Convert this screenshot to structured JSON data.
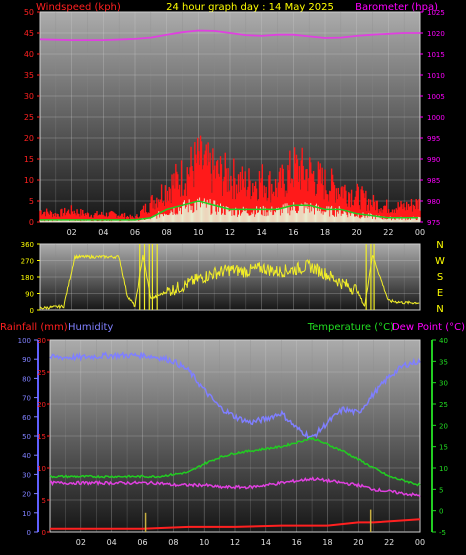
{
  "header": {
    "left_label": "Windspeed (kph)",
    "center_label": "24 hour graph day : 14 May 2025",
    "right_label": "Barometer (hpa)"
  },
  "compass": [
    "N",
    "W",
    "S",
    "E",
    "N"
  ],
  "bottom_header": {
    "rain_label": "Rainfall (mm)",
    "humidity_label": "Humidity",
    "temp_label": "Temperature (°C)",
    "dew_label": "Dew Point (°C)"
  },
  "colors": {
    "wind": "#ff1a1a",
    "gust_fill": "#e8ffe0",
    "avg_wind": "#22cc22",
    "barometer": "#e040e0",
    "direction": "#f2ee28",
    "humidity": "#7f7fff",
    "temperature": "#22cc22",
    "dewpoint": "#e040e0",
    "rain": "#ff2020",
    "rain_rate": "#c8b040"
  },
  "chart_data": [
    {
      "type": "line",
      "title": "24 hour graph day : 14 May 2025",
      "x_ticks": [
        "02",
        "04",
        "06",
        "08",
        "10",
        "12",
        "14",
        "16",
        "18",
        "20",
        "22",
        "00"
      ],
      "xlim_hours": [
        0,
        24
      ],
      "y_left": {
        "label": "Windspeed (kph)",
        "ylim": [
          0,
          50
        ],
        "ticks": [
          0,
          5,
          10,
          15,
          20,
          25,
          30,
          35,
          40,
          45,
          50
        ]
      },
      "y_right": {
        "label": "Barometer (hpa)",
        "ylim": [
          975,
          1025
        ],
        "ticks": [
          975,
          980,
          985,
          990,
          995,
          1000,
          1005,
          1010,
          1015,
          1020,
          1025
        ]
      },
      "series": [
        {
          "axis": "right",
          "kind": "barometer",
          "x": [
            0,
            2,
            4,
            6,
            7,
            8,
            9,
            10,
            11,
            12,
            13,
            14,
            15,
            16,
            17,
            18,
            19,
            20,
            21,
            22,
            23,
            24
          ],
          "values": [
            1018.5,
            1018.3,
            1018.3,
            1018.6,
            1018.9,
            1019.6,
            1020.2,
            1020.6,
            1020.5,
            1020.0,
            1019.5,
            1019.3,
            1019.6,
            1019.6,
            1019.2,
            1018.8,
            1018.9,
            1019.3,
            1019.6,
            1019.8,
            1020.0,
            1020.0
          ]
        },
        {
          "axis": "left",
          "kind": "wind_gust",
          "x": [
            0,
            1,
            2,
            3,
            4,
            5,
            6,
            7,
            8,
            9,
            10,
            11,
            12,
            13,
            14,
            15,
            16,
            17,
            18,
            19,
            20,
            21,
            22,
            23,
            24
          ],
          "values": [
            3,
            2,
            3,
            2,
            2,
            2,
            1,
            5,
            9,
            12,
            16,
            13,
            12,
            10,
            11,
            9,
            14,
            13,
            10,
            9,
            7,
            5,
            4,
            4,
            5
          ]
        },
        {
          "axis": "left",
          "kind": "wind_average",
          "x": [
            0,
            2,
            4,
            6,
            7,
            8,
            9,
            10,
            11,
            12,
            13,
            14,
            15,
            16,
            17,
            18,
            19,
            20,
            21,
            22,
            23,
            24
          ],
          "values": [
            0.5,
            0.5,
            0.5,
            0.5,
            1,
            3,
            4,
            5,
            4,
            3,
            3,
            3,
            3,
            4,
            4,
            3,
            3,
            2,
            1.5,
            1,
            1,
            1
          ]
        }
      ]
    },
    {
      "type": "line",
      "xlim_hours": [
        0,
        24
      ],
      "y_left": {
        "ylim": [
          0,
          360
        ],
        "ticks": [
          0,
          90,
          180,
          270,
          360
        ]
      },
      "series": [
        {
          "kind": "wind_direction",
          "x": [
            0,
            1.5,
            2.2,
            3,
            4,
            5,
            5.5,
            6,
            6.5,
            7,
            8,
            9,
            10,
            11,
            12,
            13,
            14,
            15,
            16,
            17,
            18,
            19,
            20,
            20.5,
            21,
            22,
            23,
            24
          ],
          "values": [
            10,
            20,
            290,
            290,
            290,
            290,
            80,
            20,
            300,
            60,
            100,
            130,
            170,
            200,
            220,
            210,
            230,
            210,
            220,
            240,
            200,
            150,
            110,
            20,
            300,
            50,
            40,
            40
          ]
        }
      ]
    },
    {
      "type": "line",
      "xlim_hours": [
        0,
        24
      ],
      "y_left": {
        "label": "Humidity",
        "ylim": [
          0,
          100
        ],
        "ticks": [
          0,
          10,
          20,
          30,
          40,
          50,
          60,
          70,
          80,
          90,
          100
        ]
      },
      "y_rain": {
        "label": "Rainfall (mm)",
        "ylim": [
          0,
          30
        ],
        "ticks": [
          0,
          5,
          10,
          15,
          20,
          25,
          30
        ]
      },
      "y_right": {
        "label": "Temperature (°C)",
        "ylim": [
          -5,
          40
        ],
        "ticks": [
          -5,
          0,
          5,
          10,
          15,
          20,
          25,
          30,
          35,
          40
        ]
      },
      "series": [
        {
          "axis": "left",
          "kind": "humidity",
          "x": [
            0,
            2,
            4,
            6,
            7,
            8,
            9,
            10,
            11,
            12,
            13,
            14,
            15,
            16,
            17,
            18,
            19,
            20,
            21,
            22,
            23,
            24
          ],
          "values": [
            91,
            91,
            92,
            92,
            91,
            89,
            84,
            74,
            65,
            60,
            57,
            59,
            62,
            54,
            49,
            57,
            64,
            62,
            72,
            81,
            87,
            89
          ]
        },
        {
          "axis": "right",
          "kind": "temperature",
          "x": [
            0,
            2,
            4,
            6,
            7,
            8,
            9,
            10,
            11,
            12,
            13,
            14,
            15,
            16,
            17,
            18,
            19,
            20,
            21,
            22,
            23,
            24
          ],
          "values": [
            8,
            8,
            8,
            8,
            8,
            8.5,
            9,
            11,
            12.5,
            13.5,
            14,
            14.5,
            15,
            16,
            17,
            15.5,
            14,
            12,
            10,
            8,
            7,
            6
          ]
        },
        {
          "axis": "right",
          "kind": "dewpoint",
          "x": [
            0,
            2,
            4,
            6,
            7,
            8,
            9,
            10,
            11,
            12,
            13,
            14,
            15,
            16,
            17,
            18,
            19,
            20,
            21,
            22,
            23,
            24
          ],
          "values": [
            6.5,
            6.5,
            6.5,
            6.5,
            6.5,
            6,
            6,
            6,
            5.5,
            5.5,
            5.5,
            6,
            6.5,
            7,
            7.5,
            7,
            6.5,
            6,
            5,
            4.5,
            4,
            3.5
          ]
        },
        {
          "axis": "rain",
          "kind": "rainfall",
          "x": [
            0,
            6,
            9,
            12,
            15,
            18,
            20,
            21,
            24
          ],
          "values": [
            0.5,
            0.5,
            0.8,
            0.8,
            1,
            1,
            1.5,
            1.5,
            2
          ]
        },
        {
          "axis": "rain",
          "kind": "rain_rate_spikes",
          "x": [
            6.2,
            20.8
          ],
          "values": [
            3,
            3.5
          ]
        }
      ]
    }
  ]
}
